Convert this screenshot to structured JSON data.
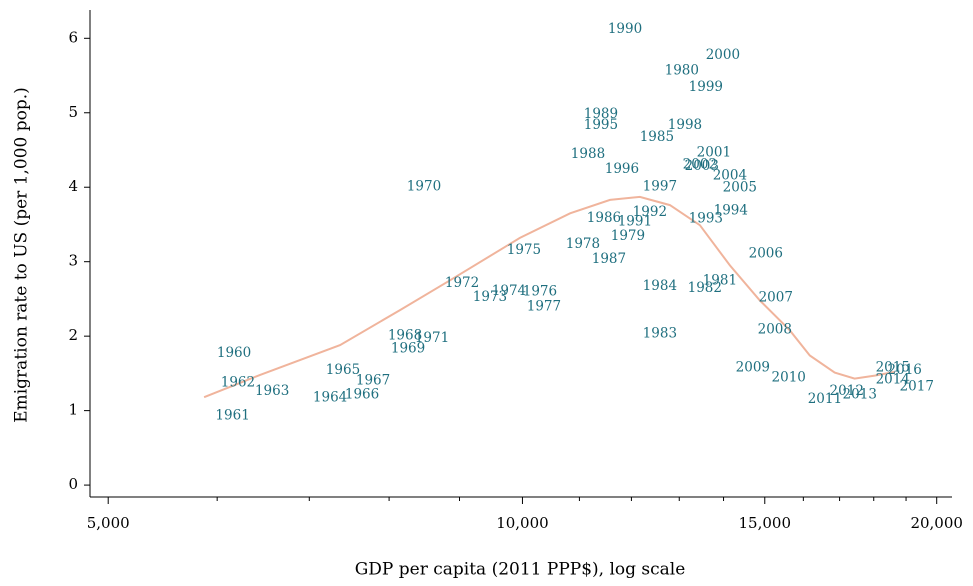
{
  "chart_data": {
    "type": "scatter",
    "x_label": "GDP per capita (2011 PPP$), log scale",
    "y_label": "Emigration rate to US (per 1,000 pop.)",
    "x_log": true,
    "xlim": [
      4850,
      20450
    ],
    "ylim": [
      -0.16,
      6.38
    ],
    "xticks": [
      {
        "value": 5000,
        "label": "5,000"
      },
      {
        "value": 10000,
        "label": "10,000"
      },
      {
        "value": 15000,
        "label": "15,000"
      },
      {
        "value": 20000,
        "label": "20,000"
      }
    ],
    "x_minor_ticks": [
      6000,
      7000,
      8000,
      9000,
      11000,
      12000,
      13000,
      14000,
      16000,
      17000,
      18000,
      19000
    ],
    "yticks": [
      0,
      1,
      2,
      3,
      4,
      5,
      6
    ],
    "series": [
      {
        "color": "#1f6f7f",
        "labels": [
          "1960",
          "1961",
          "1962",
          "1963",
          "1964",
          "1965",
          "1966",
          "1967",
          "1968",
          "1969",
          "1970",
          "1971",
          "1972",
          "1973",
          "1974",
          "1975",
          "1976",
          "1977",
          "1978",
          "1979",
          "1980",
          "1981",
          "1982",
          "1983",
          "1984",
          "1985",
          "1986",
          "1987",
          "1988",
          "1989",
          "1990",
          "1991",
          "1992",
          "1993",
          "1994",
          "1995",
          "1996",
          "1997",
          "1998",
          "1999",
          "2000",
          "2001",
          "2002",
          "2003",
          "2004",
          "2005",
          "2006",
          "2007",
          "2008",
          "2009",
          "2010",
          "2011",
          "2012",
          "2013",
          "2014",
          "2015",
          "2016",
          "2017"
        ],
        "x": [
          6172,
          6157,
          6212,
          6578,
          7248,
          7406,
          7646,
          7788,
          8216,
          8258,
          8481,
          8596,
          9039,
          9471,
          9777,
          10025,
          10297,
          10366,
          11065,
          11930,
          13056,
          13914,
          13568,
          12585,
          12585,
          12523,
          11461,
          11557,
          11159,
          11403,
          11872,
          12070,
          12376,
          13591,
          14171,
          11403,
          11811,
          12585,
          13125,
          13591,
          13985,
          13775,
          13456,
          13500,
          14150,
          14387,
          15026,
          15279,
          15254,
          14703,
          15613,
          16587,
          17205,
          17583,
          18583,
          18583,
          18958,
          19343
        ],
        "values": [
          1.77,
          0.93,
          1.37,
          1.26,
          1.17,
          1.54,
          1.21,
          1.4,
          2.0,
          1.83,
          4.0,
          1.97,
          2.71,
          2.52,
          2.6,
          3.15,
          2.59,
          2.39,
          3.23,
          3.34,
          5.56,
          2.74,
          2.64,
          2.03,
          2.67,
          4.67,
          3.58,
          3.03,
          4.44,
          4.98,
          6.12,
          3.53,
          3.66,
          3.57,
          3.68,
          4.83,
          4.24,
          4.0,
          4.83,
          5.34,
          5.77,
          4.46,
          4.3,
          4.28,
          4.15,
          3.99,
          3.1,
          2.51,
          2.08,
          1.57,
          1.44,
          1.15,
          1.26,
          1.21,
          1.41,
          1.57,
          1.54,
          1.32
        ]
      }
    ],
    "smooth": {
      "color": "#f0b49c",
      "x": [
        5870,
        6447,
        7370,
        8148,
        8859,
        9958,
        10829,
        11578,
        12171,
        12798,
        13456,
        14150,
        14875,
        15640,
        16173,
        16863,
        17434,
        18028,
        18643
      ],
      "values": [
        1.18,
        1.48,
        1.88,
        2.35,
        2.75,
        3.32,
        3.65,
        3.83,
        3.87,
        3.76,
        3.49,
        2.95,
        2.48,
        2.08,
        1.74,
        1.51,
        1.43,
        1.47,
        1.52
      ]
    }
  }
}
